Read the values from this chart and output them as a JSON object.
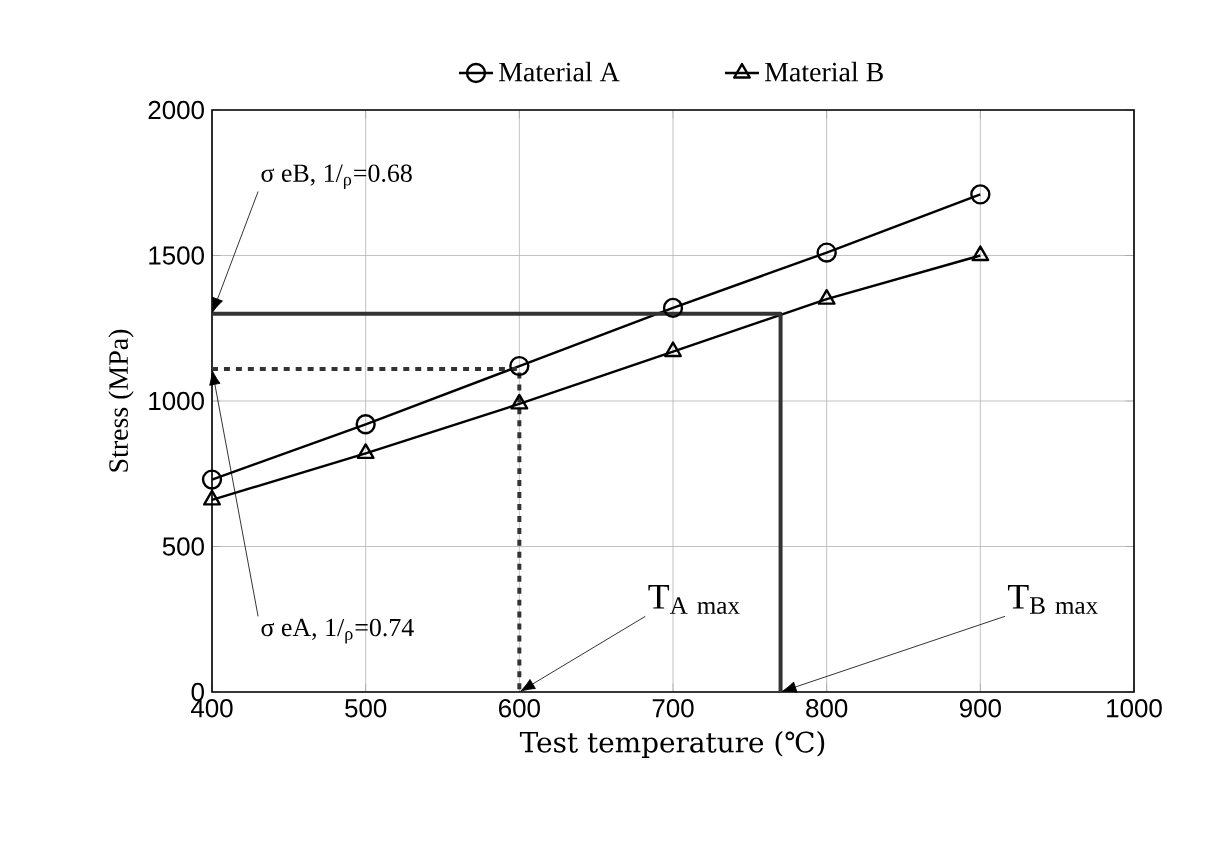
{
  "chart_data": {
    "type": "line",
    "xlabel": "Test temperature (℃)",
    "ylabel": "Stress (MPa)",
    "x": [
      400,
      500,
      600,
      700,
      800,
      900
    ],
    "series": [
      {
        "name": "Material A",
        "color": "#000000",
        "marker": "circle",
        "values": [
          730,
          920,
          1120,
          1320,
          1510,
          1710
        ]
      },
      {
        "name": "Material B",
        "color": "#000000",
        "marker": "triangle",
        "values": [
          660,
          820,
          990,
          1170,
          1350,
          1500
        ]
      },
      {
        "color": "#333333",
        "marker": "none",
        "line_style": "solid",
        "x": [
          400,
          770,
          770
        ],
        "values": [
          1300,
          1300,
          0
        ]
      },
      {
        "color": "#333333",
        "marker": "none",
        "line_style": "dashed",
        "x": [
          400,
          600,
          600
        ],
        "values": [
          1110,
          1110,
          0
        ]
      }
    ],
    "xlim": [
      400,
      1000
    ],
    "ylim": [
      0,
      2000
    ],
    "xticks": [
      400,
      500,
      600,
      700,
      800,
      900,
      1000
    ],
    "yticks": [
      0,
      500,
      1000,
      1500,
      2000
    ],
    "grid": true,
    "legend": "top",
    "annotations": [
      {
        "text": "σ eB, 1/$_{ρ}$=0.68",
        "x": 400,
        "y": 1300
      },
      {
        "text": "σ eA, 1/$_{ρ}$=0.74",
        "x": 400,
        "y": 1110
      },
      {
        "text": "\\mathrm{T}_{\\mathrm{A\\ max}}",
        "x": 600,
        "y": 0
      },
      {
        "text": "\\mathrm{T}_{\\mathrm{B\\ max}}",
        "x": 770,
        "y": 0
      }
    ]
  }
}
